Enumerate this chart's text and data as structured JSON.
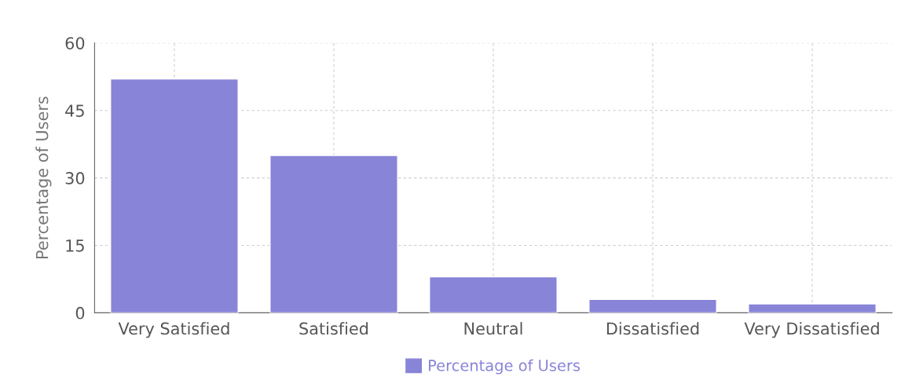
{
  "chart_data": {
    "type": "bar",
    "ylabel": "Percentage of Users",
    "categories": [
      "Very Satisfied",
      "Satisfied",
      "Neutral",
      "Dissatisfied",
      "Very Dissatisfied"
    ],
    "series": [
      {
        "name": "Percentage of Users",
        "color": "#8884d8",
        "values": [
          52,
          35,
          8,
          3,
          2
        ]
      }
    ],
    "ylim": [
      0,
      60
    ],
    "yticks": [
      0,
      15,
      30,
      45,
      60
    ],
    "grid": true,
    "legend": "bottom"
  }
}
